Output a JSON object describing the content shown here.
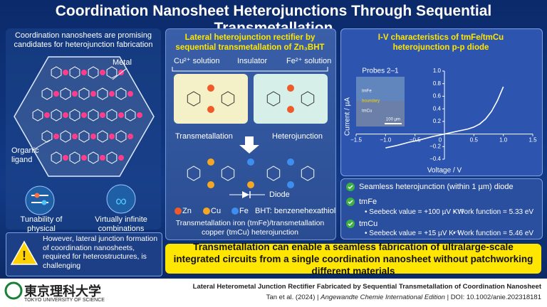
{
  "title": "Coordination Nanosheet Heterojunctions Through Sequential Transmetallation",
  "left": {
    "intro": "Coordination nanosheets are promising candidates for heterojunction fabrication",
    "metal_label": "Metal",
    "ligand_label": "Organic ligand",
    "feature_1": "Tunability of physical properties",
    "feature_2": "Virtually infinite combinations",
    "warning": "However, lateral junction formation of coordination nanosheets, required for heterostructures, is challenging"
  },
  "middle": {
    "title": "Lateral heterojunction rectifier by sequential transmetallation of Zn₃BHT",
    "cu_solution": "Cu²⁺ solution",
    "insulator": "Insulator",
    "fe_solution": "Fe²⁺ solution",
    "transmetallation": "Transmetallation",
    "heterojunction": "Heterojunction",
    "diode": "Diode",
    "legend": [
      "Zn",
      "Cu",
      "Fe"
    ],
    "bht": "BHT: benzenehexathiol",
    "caption": "Transmetallation iron (tmFe)/transmetallation copper (tmCu) heterojunction"
  },
  "chart_data": {
    "type": "line",
    "title": "I-V characteristics of tmFe/tmCu heterojunction p-p diode",
    "x_label": "Voltage / V",
    "y_label": "Current / µA",
    "x": [
      -1.0,
      -0.8,
      -0.6,
      -0.4,
      -0.2,
      0,
      0.2,
      0.4,
      0.5,
      0.6,
      0.7,
      0.8,
      0.9,
      1.0
    ],
    "values": [
      -0.22,
      -0.18,
      -0.13,
      -0.09,
      -0.04,
      0,
      0.04,
      0.08,
      0.11,
      0.16,
      0.24,
      0.36,
      0.53,
      0.75
    ],
    "color": "#ffffff",
    "xlim": [
      -1.5,
      1.5
    ],
    "ylim": [
      -0.4,
      1.0
    ],
    "xticks": [
      {
        "value": -1.5,
        "label": "−1.5"
      },
      {
        "value": -1,
        "label": "−1.0"
      },
      {
        "value": -0.5,
        "label": "−0.5"
      },
      0,
      0.5,
      {
        "value": 1,
        "label": "1.0"
      },
      1.5
    ],
    "yticks": [
      {
        "value": -0.4,
        "label": "−0.4"
      },
      {
        "value": -0.2,
        "label": "−0.2"
      },
      0.2,
      0.4,
      0.6,
      0.8,
      {
        "value": 1,
        "label": "1.0"
      }
    ],
    "inset": {
      "title": "Probes 2–1",
      "labels": [
        "tmFe",
        "boundary",
        "tmCu"
      ],
      "scale": "100 µm"
    }
  },
  "bullets": {
    "headline": "Seamless heterojunction (within 1 µm) diode",
    "items": [
      {
        "name": "tmFe",
        "seebeck": "• Seebeck value = +100 µV K⁻¹",
        "work": "• Work function = 5.33 eV"
      },
      {
        "name": "tmCu",
        "seebeck": "• Seebeck value = +15 µV K⁻¹",
        "work": "• Work function = 5.46 eV"
      }
    ]
  },
  "banner": "Transmetallation can enable a seamless fabrication of ultralarge-scale integrated circuits from a single coordination nanosheet without patchworking different materials",
  "footer": {
    "logo": "東京理科大学",
    "logo_sub": "TOKYO UNIVERSITY OF SCIENCE",
    "paper_title": "Lateral Heterometal Junction Rectifier Fabricated by Sequential Transmetallation of Coordination Nanosheet",
    "authors": "Tan et al. (2024)",
    "journal": "Angewandte Chemie International Edition",
    "doi": "DOI: 10.1002/anie.202318181"
  }
}
